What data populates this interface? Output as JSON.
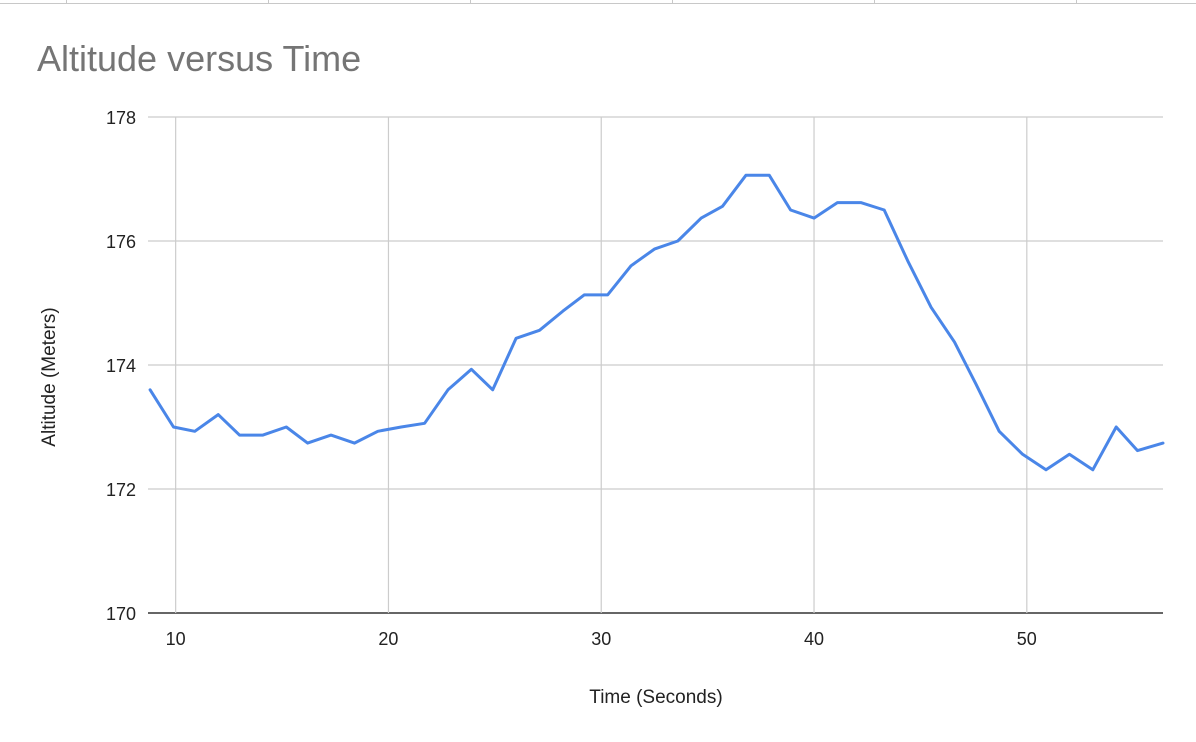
{
  "chart_data": {
    "type": "line",
    "title": "Altitude versus Time",
    "xlabel": "Time (Seconds)",
    "ylabel": "Altitude (Meters)",
    "xlim": [
      8.7,
      56.4
    ],
    "ylim": [
      170,
      178
    ],
    "x_ticks": [
      "10",
      "20",
      "30",
      "40",
      "50"
    ],
    "y_ticks": [
      "170",
      "172",
      "174",
      "176",
      "178"
    ],
    "grid": true,
    "legend": "none",
    "series": [
      {
        "color": "#4a86e8",
        "x": [
          8.8,
          9.9,
          10.9,
          12.0,
          13.0,
          14.1,
          15.2,
          16.2,
          17.3,
          18.4,
          19.5,
          20.6,
          21.7,
          22.8,
          23.9,
          24.9,
          26.0,
          27.1,
          28.2,
          29.2,
          30.3,
          31.4,
          32.5,
          33.6,
          34.7,
          35.7,
          36.8,
          37.9,
          38.9,
          40.0,
          41.1,
          42.2,
          43.3,
          44.4,
          45.5,
          46.6,
          47.6,
          48.7,
          49.8,
          50.9,
          52.0,
          53.1,
          54.2,
          55.2,
          56.4
        ],
        "y": [
          173.6,
          173.0,
          172.93,
          173.2,
          172.87,
          172.87,
          173.0,
          172.74,
          172.87,
          172.74,
          172.93,
          173.0,
          173.06,
          173.6,
          173.93,
          173.6,
          174.43,
          174.56,
          174.87,
          175.13,
          175.13,
          175.6,
          175.87,
          176.0,
          176.37,
          176.56,
          177.06,
          177.06,
          176.5,
          176.37,
          176.62,
          176.62,
          176.5,
          175.68,
          174.93,
          174.37,
          173.7,
          172.93,
          172.56,
          172.31,
          172.56,
          172.31,
          173.0,
          172.62,
          172.74
        ]
      }
    ]
  }
}
